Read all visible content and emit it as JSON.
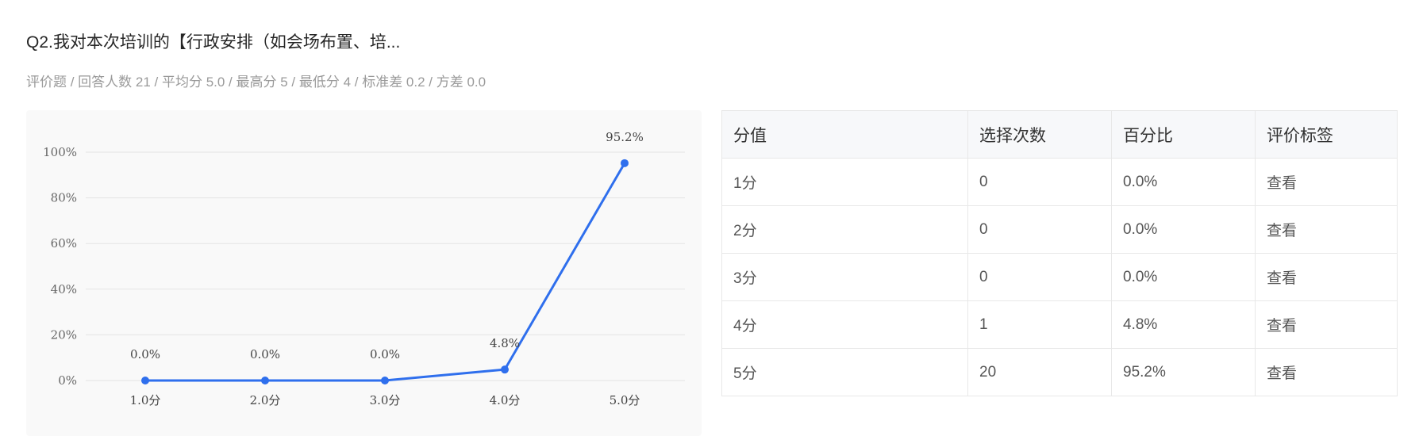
{
  "question": {
    "title": "Q2.我对本次培训的【行政安排（如会场布置、培...",
    "meta": "评价题 / 回答人数 21 / 平均分 5.0 / 最高分 5 / 最低分 4 / 标准差 0.2 / 方差 0.0"
  },
  "chart_data": {
    "type": "line",
    "categories": [
      "1.0分",
      "2.0分",
      "3.0分",
      "4.0分",
      "5.0分"
    ],
    "values": [
      0.0,
      0.0,
      0.0,
      4.8,
      95.2
    ],
    "data_labels": [
      "0.0%",
      "0.0%",
      "0.0%",
      "4.8%",
      "95.2%"
    ],
    "y_ticks": [
      "0%",
      "20%",
      "40%",
      "60%",
      "80%",
      "100%"
    ],
    "ylim": [
      0,
      100
    ],
    "grid": true,
    "line_color": "#2f6fed",
    "title": "",
    "xlabel": "",
    "ylabel": ""
  },
  "table": {
    "headers": [
      "分值",
      "选择次数",
      "百分比",
      "评价标签"
    ],
    "rows": [
      {
        "score": "1分",
        "count": "0",
        "percent": "0.0%",
        "action": "查看"
      },
      {
        "score": "2分",
        "count": "0",
        "percent": "0.0%",
        "action": "查看"
      },
      {
        "score": "3分",
        "count": "0",
        "percent": "0.0%",
        "action": "查看"
      },
      {
        "score": "4分",
        "count": "1",
        "percent": "4.8%",
        "action": "查看"
      },
      {
        "score": "5分",
        "count": "20",
        "percent": "95.2%",
        "action": "查看"
      }
    ]
  }
}
